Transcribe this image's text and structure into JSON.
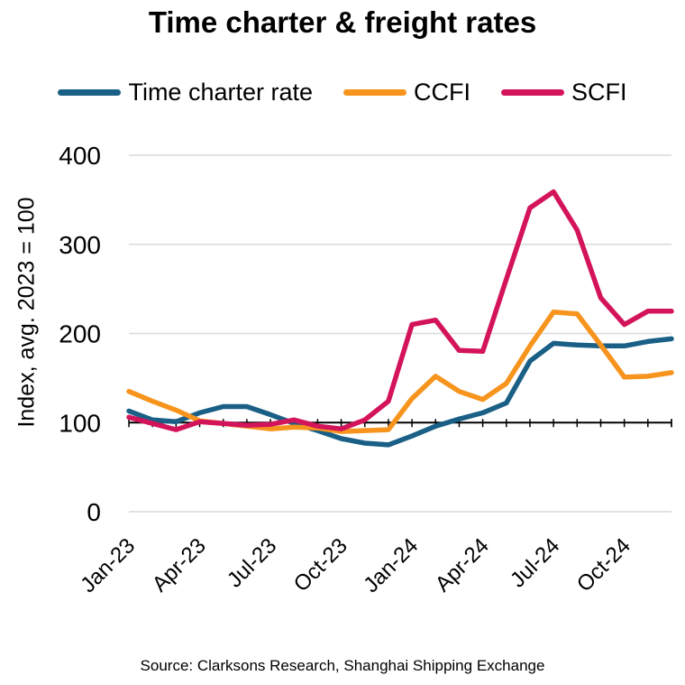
{
  "chart_data": {
    "type": "line",
    "title": "Time charter & freight rates",
    "ylabel": "Index, avg. 2023 = 100",
    "xlabel": "",
    "source": "Source: Clarksons Research, Shanghai Shipping Exchange",
    "ylim": [
      0,
      400
    ],
    "yticks": [
      0,
      100,
      200,
      300,
      400
    ],
    "grid": true,
    "legend": "top",
    "x": [
      "Jan-23",
      "Feb-23",
      "Mar-23",
      "Apr-23",
      "May-23",
      "Jun-23",
      "Jul-23",
      "Aug-23",
      "Sep-23",
      "Oct-23",
      "Nov-23",
      "Dec-23",
      "Jan-24",
      "Feb-24",
      "Mar-24",
      "Apr-24",
      "May-24",
      "Jun-24",
      "Jul-24",
      "Aug-24",
      "Sep-24",
      "Oct-24",
      "Nov-24",
      "Dec-24"
    ],
    "xtick_labels": [
      "Jan-23",
      "Apr-23",
      "Jul-23",
      "Oct-23",
      "Jan-24",
      "Apr-24",
      "Jul-24",
      "Oct-24"
    ],
    "series": [
      {
        "name": "Time charter rate",
        "color": "#1a5f86",
        "values": [
          113,
          103,
          101,
          111,
          118,
          118,
          109,
          99,
          91,
          82,
          77,
          75,
          85,
          96,
          104,
          111,
          122,
          169,
          189,
          187,
          186,
          186,
          191,
          194
        ]
      },
      {
        "name": "CCFI",
        "color": "#f7941d",
        "values": [
          135,
          124,
          114,
          102,
          99,
          96,
          93,
          95,
          94,
          90,
          91,
          92,
          127,
          152,
          135,
          126,
          144,
          186,
          224,
          222,
          187,
          151,
          152,
          156
        ]
      },
      {
        "name": "SCFI",
        "color": "#d3145b",
        "values": [
          106,
          99,
          92,
          101,
          99,
          97,
          98,
          103,
          96,
          93,
          103,
          124,
          210,
          215,
          181,
          180,
          261,
          341,
          359,
          316,
          240,
          210,
          225,
          225
        ]
      }
    ]
  }
}
